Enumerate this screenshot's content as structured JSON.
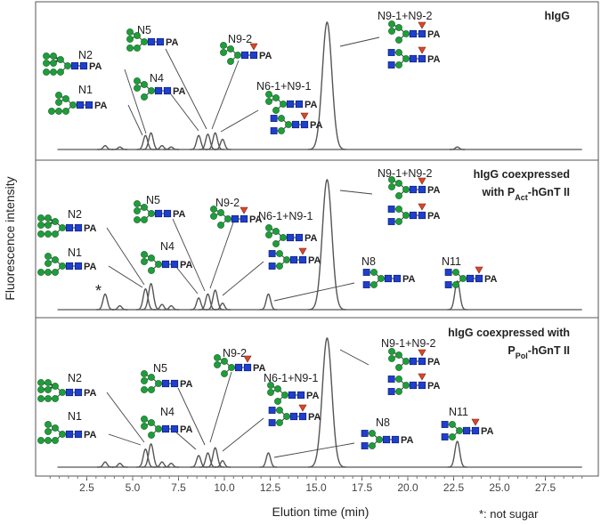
{
  "chart_data": {
    "type": "line",
    "x_label": "Elution time (min)",
    "y_label": "Fluorescence intensity",
    "footnote": "*: not sugar",
    "xlim": [
      0,
      30
    ],
    "xticks": [
      2.5,
      {
        "value": 5,
        "label": "5.0"
      },
      7.5,
      {
        "value": 10,
        "label": "10.0"
      },
      12.5,
      {
        "value": 15,
        "label": "15.0"
      },
      17.5,
      {
        "value": 20,
        "label": "20.0"
      },
      22.5,
      {
        "value": 25,
        "label": "25.0"
      },
      27.5
    ],
    "ylim": [
      0,
      100
    ],
    "color": "#555555",
    "panels": [
      {
        "title_lines": [
          [
            "hIgG"
          ]
        ],
        "x": [
          3.5,
          4.3,
          5.7,
          6.0,
          6.6,
          7.1,
          8.6,
          9.1,
          9.5,
          9.9,
          15.6,
          22.7
        ],
        "values": [
          3,
          2,
          11,
          13,
          3,
          2,
          11,
          12,
          13,
          8,
          100,
          2
        ],
        "annotations": [
          {
            "label": "N2",
            "structures": [
              {
                "tag": "PA"
              }
            ]
          },
          {
            "label": "N1",
            "structures": [
              {
                "tag": "PA"
              }
            ]
          },
          {
            "label": "N5",
            "structures": [
              {
                "tag": "PA"
              }
            ]
          },
          {
            "label": "N4",
            "structures": [
              {
                "tag": "PA"
              }
            ]
          },
          {
            "label": "N9-2",
            "structures": [
              {
                "tag": "PA"
              }
            ]
          },
          {
            "label": "N6-1+N9-1",
            "structures": [
              {
                "tag": "PA"
              },
              {
                "tag": "PA"
              }
            ]
          },
          {
            "label": "N9-1+N9-2",
            "structures": [
              {
                "tag": "PA"
              },
              {
                "tag": "PA"
              }
            ]
          }
        ]
      },
      {
        "title_lines": [
          [
            "hIgG coexpressed"
          ],
          [
            "with P",
            "Act",
            "-hGnT II"
          ]
        ],
        "x": [
          3.5,
          4.3,
          5.7,
          6.0,
          6.6,
          7.1,
          8.6,
          9.1,
          9.5,
          9.9,
          12.4,
          15.6,
          22.7
        ],
        "values": [
          12,
          3,
          16,
          20,
          4,
          3,
          9,
          12,
          15,
          5,
          12,
          100,
          22
        ],
        "annotations": [
          {
            "label": "N2",
            "structures": [
              {
                "tag": "PA"
              }
            ]
          },
          {
            "label": "N1",
            "structures": [
              {
                "tag": "PA"
              }
            ]
          },
          {
            "label": "N5",
            "structures": [
              {
                "tag": "PA"
              }
            ]
          },
          {
            "label": "N4",
            "structures": [
              {
                "tag": "PA"
              }
            ]
          },
          {
            "label": "N9-2",
            "structures": [
              {
                "tag": "PA"
              }
            ]
          },
          {
            "label": "N6-1+N9-1",
            "structures": [
              {
                "tag": "PA"
              },
              {
                "tag": "PA"
              }
            ]
          },
          {
            "label": "N9-1+N9-2",
            "structures": [
              {
                "tag": "PA"
              },
              {
                "tag": "PA"
              }
            ]
          },
          {
            "label": "N8",
            "structures": [
              {
                "tag": "PA"
              }
            ]
          },
          {
            "label": "N11",
            "structures": [
              {
                "tag": "PA"
              }
            ]
          },
          {
            "label": "*",
            "structures": []
          }
        ]
      },
      {
        "title_lines": [
          [
            "hIgG coexpressed with"
          ],
          [
            "P",
            "Pol",
            "-hGnT II"
          ]
        ],
        "x": [
          3.5,
          4.3,
          5.7,
          6.0,
          6.6,
          7.1,
          8.6,
          9.1,
          9.5,
          9.9,
          12.4,
          15.6,
          22.7
        ],
        "values": [
          4,
          3,
          14,
          18,
          4,
          3,
          9,
          11,
          15,
          5,
          11,
          100,
          20
        ],
        "annotations": [
          {
            "label": "N2",
            "structures": [
              {
                "tag": "PA"
              }
            ]
          },
          {
            "label": "N1",
            "structures": [
              {
                "tag": "PA"
              }
            ]
          },
          {
            "label": "N5",
            "structures": [
              {
                "tag": "PA"
              }
            ]
          },
          {
            "label": "N4",
            "structures": [
              {
                "tag": "PA"
              }
            ]
          },
          {
            "label": "N9-2",
            "structures": [
              {
                "tag": "PA"
              }
            ]
          },
          {
            "label": "N6-1+N9-1",
            "structures": [
              {
                "tag": "PA"
              },
              {
                "tag": "PA"
              }
            ]
          },
          {
            "label": "N9-1+N9-2",
            "structures": [
              {
                "tag": "PA"
              },
              {
                "tag": "PA"
              }
            ]
          },
          {
            "label": "N8",
            "structures": [
              {
                "tag": "PA"
              }
            ]
          },
          {
            "label": "N11",
            "structures": [
              {
                "tag": "PA"
              }
            ]
          }
        ]
      }
    ]
  }
}
